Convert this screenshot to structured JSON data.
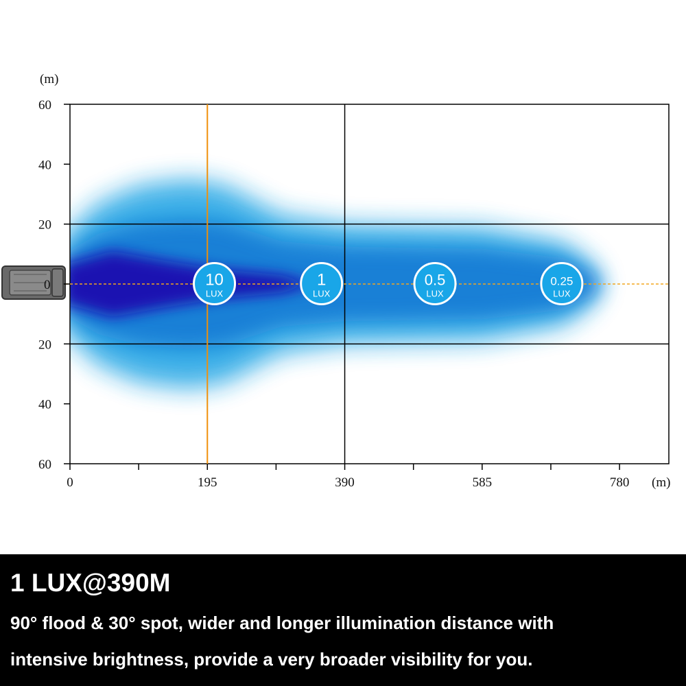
{
  "chart_data": {
    "type": "heatmap",
    "title": "",
    "xlabel": "(m)",
    "ylabel": "(m)",
    "x_ticks": [
      0,
      195,
      390,
      585,
      780
    ],
    "y_ticks_labels": [
      "60",
      "40",
      "20",
      "0",
      "20",
      "40",
      "60"
    ],
    "y_ticks_values": [
      60,
      40,
      20,
      0,
      -20,
      -40,
      -60
    ],
    "xlim": [
      0,
      850
    ],
    "ylim": [
      -60,
      60
    ],
    "grid": true,
    "reference_line_x": 195,
    "lux_markers": [
      {
        "value": "10",
        "unit": "LUX",
        "distance": 205
      },
      {
        "value": "1",
        "unit": "LUX",
        "distance": 357
      },
      {
        "value": "0.5",
        "unit": "LUX",
        "distance": 518
      },
      {
        "value": "0.25",
        "unit": "LUX",
        "distance": 698
      }
    ],
    "beam_profile": {
      "outer_halfwidth": [
        {
          "x": 0,
          "y": 18
        },
        {
          "x": 40,
          "y": 27
        },
        {
          "x": 100,
          "y": 33
        },
        {
          "x": 170,
          "y": 35
        },
        {
          "x": 220,
          "y": 33
        },
        {
          "x": 300,
          "y": 23
        },
        {
          "x": 390,
          "y": 20
        },
        {
          "x": 585,
          "y": 19
        },
        {
          "x": 700,
          "y": 14
        },
        {
          "x": 740,
          "y": 7
        },
        {
          "x": 755,
          "y": 0
        }
      ],
      "inner_halfwidth": [
        {
          "x": 0,
          "y": 7
        },
        {
          "x": 60,
          "y": 11
        },
        {
          "x": 130,
          "y": 8
        },
        {
          "x": 210,
          "y": 5
        },
        {
          "x": 300,
          "y": 3
        },
        {
          "x": 350,
          "y": 0
        }
      ]
    },
    "colors": {
      "beam_outer": "#1aa3e4",
      "beam_mid": "#0a6fd0",
      "beam_core": "#1a10b0",
      "marker_fill": "#19a6e8",
      "reference_line": "#f0900a",
      "center_line": "#f2a51e",
      "grid": "#000000"
    }
  },
  "caption": {
    "title": "1 LUX@390M",
    "body_line1": "90° flood & 30° spot, wider and longer illumination distance with",
    "body_line2": "intensive brightness, provide a very broader visibility for you."
  }
}
